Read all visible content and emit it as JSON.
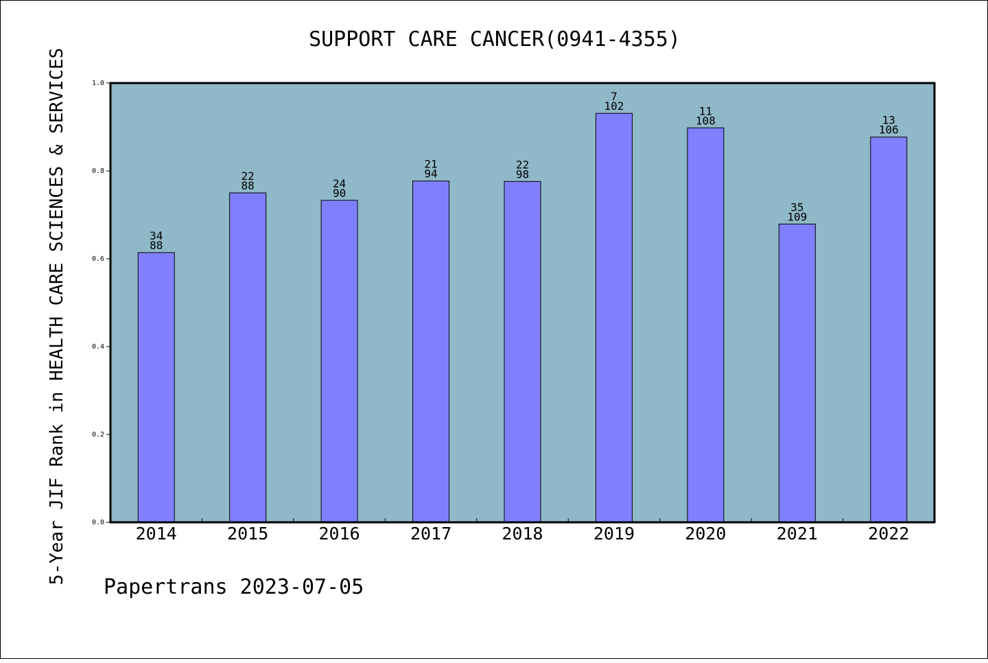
{
  "chart_data": {
    "type": "bar",
    "title": "SUPPORT CARE CANCER(0941-4355)",
    "xlabel": "",
    "ylabel": "5-Year JIF Rank in HEALTH CARE SCIENCES & SERVICES",
    "ylim": [
      0.0,
      1.0
    ],
    "yticks": [
      "0.0",
      "0.2",
      "0.4",
      "0.6",
      "0.8",
      "1.0"
    ],
    "grid": false,
    "categories": [
      "2014",
      "2015",
      "2016",
      "2017",
      "2018",
      "2019",
      "2020",
      "2021",
      "2022"
    ],
    "values": [
      0.614,
      0.75,
      0.733,
      0.777,
      0.776,
      0.931,
      0.898,
      0.679,
      0.877
    ],
    "rank": [
      "34",
      "22",
      "24",
      "21",
      "22",
      "7",
      "11",
      "35",
      "13"
    ],
    "total": [
      "88",
      "88",
      "90",
      "94",
      "98",
      "102",
      "108",
      "109",
      "106"
    ],
    "colors": {
      "bar": "#8080ff",
      "plot_background": "#8fb8c8",
      "axis": "#000000"
    }
  },
  "footer": "Papertrans 2023-07-05"
}
